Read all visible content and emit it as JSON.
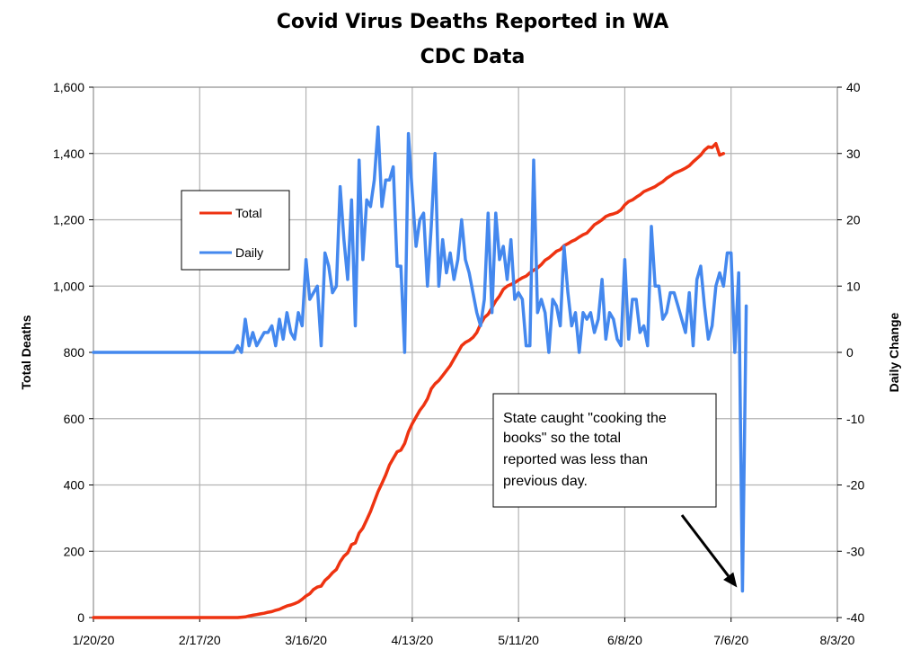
{
  "chart_data": {
    "type": "line",
    "title": "Covid Virus Deaths Reported in WA",
    "subtitle": "CDC Data",
    "ylabel": "Total Deaths",
    "y2label": "Daily Change",
    "ylim": [
      0,
      1600
    ],
    "y2lim": [
      -40,
      40
    ],
    "yticks": [
      0,
      200,
      400,
      600,
      800,
      1000,
      1200,
      1400,
      1600
    ],
    "ytick_labels": [
      "0",
      "200",
      "400",
      "600",
      "800",
      "1,000",
      "1,200",
      "1,400",
      "1,600"
    ],
    "y2ticks": [
      -40,
      -30,
      -20,
      -10,
      0,
      10,
      20,
      30,
      40
    ],
    "y2tick_labels": [
      "-40",
      "-30",
      "-20",
      "-10",
      "0",
      "10",
      "20",
      "30",
      "40"
    ],
    "xlim_days": [
      0,
      196
    ],
    "xticks_days": [
      0,
      28,
      56,
      84,
      112,
      140,
      168,
      196
    ],
    "xtick_labels": [
      "1/20/20",
      "2/17/20",
      "3/16/20",
      "4/13/20",
      "5/11/20",
      "6/8/20",
      "7/6/20",
      "8/3/20"
    ],
    "x_unit": "days since 1/20/20",
    "grid": true,
    "legend": {
      "placement": "upper-left",
      "entries": [
        "Total",
        "Daily"
      ]
    },
    "series": [
      {
        "name": "Total",
        "axis": "left",
        "color": "#ee3311",
        "points": [
          [
            0,
            0
          ],
          [
            38,
            0
          ],
          [
            39,
            1
          ],
          [
            40,
            2
          ],
          [
            41,
            5
          ],
          [
            42,
            7
          ],
          [
            43,
            9
          ],
          [
            44,
            11
          ],
          [
            45,
            13
          ],
          [
            46,
            16
          ],
          [
            47,
            18
          ],
          [
            48,
            22
          ],
          [
            49,
            25
          ],
          [
            50,
            30
          ],
          [
            51,
            35
          ],
          [
            52,
            38
          ],
          [
            53,
            42
          ],
          [
            54,
            47
          ],
          [
            55,
            55
          ],
          [
            56,
            65
          ],
          [
            57,
            72
          ],
          [
            58,
            85
          ],
          [
            59,
            92
          ],
          [
            60,
            95
          ],
          [
            61,
            112
          ],
          [
            62,
            122
          ],
          [
            63,
            135
          ],
          [
            64,
            145
          ],
          [
            65,
            168
          ],
          [
            66,
            185
          ],
          [
            67,
            195
          ],
          [
            68,
            220
          ],
          [
            69,
            225
          ],
          [
            70,
            255
          ],
          [
            71,
            270
          ],
          [
            72,
            295
          ],
          [
            73,
            320
          ],
          [
            74,
            350
          ],
          [
            75,
            380
          ],
          [
            76,
            405
          ],
          [
            77,
            430
          ],
          [
            78,
            460
          ],
          [
            79,
            480
          ],
          [
            80,
            500
          ],
          [
            81,
            505
          ],
          [
            82,
            525
          ],
          [
            83,
            560
          ],
          [
            84,
            585
          ],
          [
            85,
            605
          ],
          [
            86,
            625
          ],
          [
            87,
            640
          ],
          [
            88,
            660
          ],
          [
            89,
            690
          ],
          [
            90,
            705
          ],
          [
            91,
            715
          ],
          [
            92,
            730
          ],
          [
            93,
            745
          ],
          [
            94,
            760
          ],
          [
            95,
            780
          ],
          [
            96,
            800
          ],
          [
            97,
            820
          ],
          [
            98,
            830
          ],
          [
            99,
            836
          ],
          [
            100,
            845
          ],
          [
            101,
            860
          ],
          [
            102,
            885
          ],
          [
            103,
            905
          ],
          [
            104,
            915
          ],
          [
            105,
            935
          ],
          [
            106,
            955
          ],
          [
            107,
            970
          ],
          [
            108,
            990
          ],
          [
            109,
            1000
          ],
          [
            110,
            1005
          ],
          [
            111,
            1010
          ],
          [
            112,
            1018
          ],
          [
            113,
            1025
          ],
          [
            114,
            1030
          ],
          [
            115,
            1040
          ],
          [
            116,
            1048
          ],
          [
            117,
            1055
          ],
          [
            118,
            1065
          ],
          [
            119,
            1078
          ],
          [
            120,
            1085
          ],
          [
            121,
            1095
          ],
          [
            122,
            1105
          ],
          [
            123,
            1110
          ],
          [
            124,
            1122
          ],
          [
            125,
            1128
          ],
          [
            126,
            1135
          ],
          [
            127,
            1140
          ],
          [
            128,
            1148
          ],
          [
            129,
            1155
          ],
          [
            130,
            1160
          ],
          [
            131,
            1172
          ],
          [
            132,
            1185
          ],
          [
            133,
            1192
          ],
          [
            134,
            1200
          ],
          [
            135,
            1210
          ],
          [
            136,
            1215
          ],
          [
            137,
            1218
          ],
          [
            138,
            1222
          ],
          [
            139,
            1230
          ],
          [
            140,
            1245
          ],
          [
            141,
            1255
          ],
          [
            142,
            1260
          ],
          [
            143,
            1268
          ],
          [
            144,
            1275
          ],
          [
            145,
            1285
          ],
          [
            146,
            1290
          ],
          [
            147,
            1295
          ],
          [
            148,
            1300
          ],
          [
            149,
            1308
          ],
          [
            150,
            1315
          ],
          [
            151,
            1325
          ],
          [
            152,
            1332
          ],
          [
            153,
            1340
          ],
          [
            154,
            1345
          ],
          [
            155,
            1350
          ],
          [
            156,
            1356
          ],
          [
            157,
            1363
          ],
          [
            158,
            1375
          ],
          [
            159,
            1385
          ],
          [
            160,
            1395
          ],
          [
            161,
            1410
          ],
          [
            162,
            1420
          ],
          [
            163,
            1418
          ],
          [
            164,
            1430
          ],
          [
            165,
            1395
          ],
          [
            166,
            1400
          ]
        ]
      },
      {
        "name": "Daily",
        "axis": "right",
        "color": "#4488ee",
        "points": [
          [
            0,
            0
          ],
          [
            37,
            0
          ],
          [
            38,
            1
          ],
          [
            39,
            0
          ],
          [
            40,
            5
          ],
          [
            41,
            1
          ],
          [
            42,
            3
          ],
          [
            43,
            1
          ],
          [
            44,
            2
          ],
          [
            45,
            3
          ],
          [
            46,
            3
          ],
          [
            47,
            4
          ],
          [
            48,
            1
          ],
          [
            49,
            5
          ],
          [
            50,
            2
          ],
          [
            51,
            6
          ],
          [
            52,
            3
          ],
          [
            53,
            2
          ],
          [
            54,
            6
          ],
          [
            55,
            4
          ],
          [
            56,
            14
          ],
          [
            57,
            8
          ],
          [
            58,
            9
          ],
          [
            59,
            10
          ],
          [
            60,
            1
          ],
          [
            61,
            15
          ],
          [
            62,
            13
          ],
          [
            63,
            9
          ],
          [
            64,
            10
          ],
          [
            65,
            25
          ],
          [
            66,
            17
          ],
          [
            67,
            11
          ],
          [
            68,
            23
          ],
          [
            69,
            4
          ],
          [
            70,
            29
          ],
          [
            71,
            14
          ],
          [
            72,
            23
          ],
          [
            73,
            22
          ],
          [
            74,
            26
          ],
          [
            75,
            34
          ],
          [
            76,
            22
          ],
          [
            77,
            26
          ],
          [
            78,
            26
          ],
          [
            79,
            28
          ],
          [
            80,
            13
          ],
          [
            81,
            13
          ],
          [
            82,
            0
          ],
          [
            83,
            33
          ],
          [
            84,
            24
          ],
          [
            85,
            16
          ],
          [
            86,
            20
          ],
          [
            87,
            21
          ],
          [
            88,
            10
          ],
          [
            89,
            19
          ],
          [
            90,
            30
          ],
          [
            91,
            10
          ],
          [
            92,
            17
          ],
          [
            93,
            12
          ],
          [
            94,
            15
          ],
          [
            95,
            11
          ],
          [
            96,
            14
          ],
          [
            97,
            20
          ],
          [
            98,
            14
          ],
          [
            99,
            12
          ],
          [
            100,
            9
          ],
          [
            101,
            6
          ],
          [
            102,
            4
          ],
          [
            103,
            8
          ],
          [
            104,
            21
          ],
          [
            105,
            6
          ],
          [
            106,
            21
          ],
          [
            107,
            14
          ],
          [
            108,
            16
          ],
          [
            109,
            11
          ],
          [
            110,
            17
          ],
          [
            111,
            8
          ],
          [
            112,
            9
          ],
          [
            113,
            8
          ],
          [
            114,
            1
          ],
          [
            115,
            1
          ],
          [
            116,
            29
          ],
          [
            117,
            6
          ],
          [
            118,
            8
          ],
          [
            119,
            6
          ],
          [
            120,
            0
          ],
          [
            121,
            8
          ],
          [
            122,
            7
          ],
          [
            123,
            4
          ],
          [
            124,
            16
          ],
          [
            125,
            9
          ],
          [
            126,
            4
          ],
          [
            127,
            6
          ],
          [
            128,
            0
          ],
          [
            129,
            6
          ],
          [
            130,
            5
          ],
          [
            131,
            6
          ],
          [
            132,
            3
          ],
          [
            133,
            5
          ],
          [
            134,
            11
          ],
          [
            135,
            2
          ],
          [
            136,
            6
          ],
          [
            137,
            5
          ],
          [
            138,
            2
          ],
          [
            139,
            1
          ],
          [
            140,
            14
          ],
          [
            141,
            2
          ],
          [
            142,
            8
          ],
          [
            143,
            8
          ],
          [
            144,
            3
          ],
          [
            145,
            4
          ],
          [
            146,
            1
          ],
          [
            147,
            19
          ],
          [
            148,
            10
          ],
          [
            149,
            10
          ],
          [
            150,
            5
          ],
          [
            151,
            6
          ],
          [
            152,
            9
          ],
          [
            153,
            9
          ],
          [
            154,
            7
          ],
          [
            155,
            5
          ],
          [
            156,
            3
          ],
          [
            157,
            9
          ],
          [
            158,
            1
          ],
          [
            159,
            11
          ],
          [
            160,
            13
          ],
          [
            161,
            7
          ],
          [
            162,
            2
          ],
          [
            163,
            4
          ],
          [
            164,
            10
          ],
          [
            165,
            12
          ],
          [
            166,
            10
          ],
          [
            167,
            15
          ],
          [
            168,
            15
          ],
          [
            169,
            0
          ],
          [
            170,
            12
          ],
          [
            171,
            -36
          ],
          [
            172,
            7
          ]
        ]
      }
    ],
    "annotation": {
      "text_lines": [
        "State caught \"cooking the",
        "books\" so the  total",
        "reported was less than",
        "previous day."
      ],
      "arrow_target": [
        171,
        -36
      ],
      "arrow_target_axis": "right"
    }
  }
}
